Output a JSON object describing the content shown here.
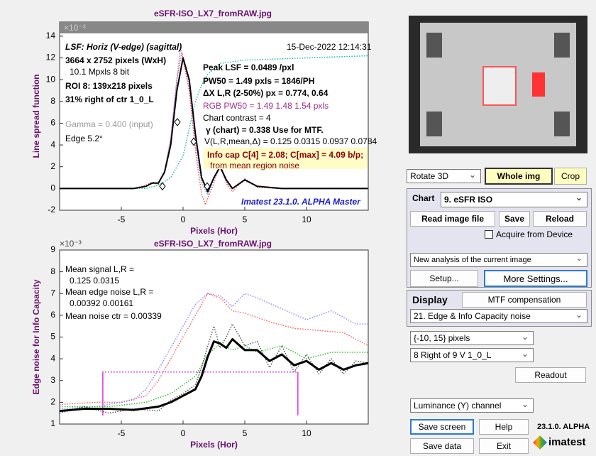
{
  "chart_data": [
    {
      "type": "line",
      "title": "eSFR-ISO_LX7_fromRAW.jpg",
      "multiplier": "×10⁻³",
      "xlabel": "Pixels (Hor)",
      "ylabel": "Line spread function",
      "xlim": [
        -10,
        15
      ],
      "ylim": [
        -2,
        15.3
      ],
      "xticks": [
        -5,
        0,
        5,
        10
      ],
      "yticks": [
        -2,
        0,
        2,
        4,
        6,
        8,
        10,
        12,
        14
      ],
      "annotations": [
        "LSF: Horiz (V-edge) (sagittal)",
        "15-Dec-2022 12:14:31",
        "3664 x 2752 pixels (WxH)",
        "10.1 Mpxls  8 bit",
        "ROI 8:  139x218 pixels",
        "31% right of ctr  1_0_L",
        "Gamma = 0.400 (input)",
        "Edge   5.2°",
        "Peak LSF = 0.0489 /pxl",
        "PW50 = 1.49 pxls =  1846/PH",
        "ΔX L,R (2-50%) px = 0.774, 0.64",
        "RGB PW50 =   1.49    1.48    1.54 pxls",
        "Chart contrast = 4",
        "γ (chart) = 0.338  Use for MTF.",
        "V(L,R,mean,Δ) = 0.125  0.0315  0.0937  0.0784",
        "Info cap C[4] = 2.08;  C[max] = 4.09 b/p;",
        "from mean region noise",
        "Imatest 23.1.0. ALPHA Master"
      ],
      "series": [
        {
          "color": "#20b8b8",
          "style": "dotted",
          "x": [
            -10,
            -3,
            -2,
            -1,
            0,
            0.5,
            1,
            1.5,
            2,
            3,
            5,
            10,
            15
          ],
          "values": [
            0,
            0,
            0.3,
            1,
            3,
            5.5,
            8,
            9.5,
            10.5,
            11.5,
            11.8,
            12,
            12.2
          ]
        },
        {
          "color": "#ff5050",
          "style": "dotted",
          "x": [
            -10,
            -4,
            -3,
            -2.5,
            -2,
            -1.5,
            -1,
            -0.5,
            -0.1,
            0.5,
            1,
            1.5,
            1.8,
            2.5,
            3,
            3.5,
            4,
            5,
            6,
            8,
            10,
            15
          ],
          "values": [
            0,
            0,
            0.3,
            0.6,
            0.4,
            1.5,
            4.5,
            10,
            12.5,
            9,
            3.5,
            -0.5,
            -1.5,
            0.5,
            2.3,
            0.5,
            -0.3,
            0.9,
            0.1,
            0,
            0,
            0
          ]
        },
        {
          "color": "#30c030",
          "style": "dotted",
          "x": [
            -10,
            -4,
            -3,
            -2.5,
            -2,
            -1.5,
            -1,
            -0.5,
            0,
            0.5,
            1,
            1.5,
            2,
            2.5,
            3,
            3.5,
            4,
            5,
            6,
            8,
            10,
            15
          ],
          "values": [
            0,
            0,
            0.2,
            0.5,
            0.4,
            1.5,
            4,
            9.2,
            12,
            10,
            5,
            0.8,
            -0.4,
            1,
            2.1,
            0.7,
            0,
            0.8,
            0.2,
            0,
            0,
            0
          ]
        },
        {
          "color": "#8888ff",
          "style": "dotted",
          "x": [
            -10,
            -4,
            -3,
            -2.5,
            -2,
            -1.5,
            -1,
            -0.5,
            -0.2,
            0.5,
            1,
            1.5,
            2,
            2.5,
            3,
            3.5,
            4,
            5,
            6,
            8,
            10,
            15
          ],
          "values": [
            0,
            0,
            0.2,
            0.5,
            0.5,
            1.6,
            4.5,
            10,
            13,
            9.5,
            4,
            0.5,
            -0.6,
            0.8,
            2,
            0.6,
            0,
            0.7,
            0.2,
            0,
            0,
            0
          ]
        },
        {
          "color": "#000000",
          "style": "solid",
          "x": [
            -10,
            -4,
            -3,
            -2.5,
            -2,
            -1.5,
            -1,
            -0.5,
            0,
            0.5,
            1,
            1.5,
            2,
            2.5,
            3,
            3.5,
            4,
            5,
            6,
            8,
            10,
            15
          ],
          "values": [
            0,
            0,
            0.2,
            0.5,
            0.5,
            1.5,
            4,
            9,
            12,
            10,
            5,
            1,
            -0.3,
            1,
            2,
            0.8,
            0,
            0.8,
            0.2,
            0,
            0,
            0
          ]
        },
        {
          "color": "#000000",
          "marker": "diamond",
          "x": [
            -1.67,
            -0.46,
            0.86,
            1.95
          ],
          "values": [
            0.2,
            6.1,
            4.3,
            0.2
          ]
        }
      ]
    },
    {
      "type": "line",
      "title": "eSFR-ISO_LX7_fromRAW.jpg",
      "multiplier": "×10⁻³",
      "xlabel": "Pixels (Hor)",
      "ylabel": "Edge noise for Info Capacity",
      "xlim": [
        -10,
        15
      ],
      "ylim": [
        1,
        9
      ],
      "xticks": [
        -5,
        0,
        5,
        10
      ],
      "yticks": [
        1,
        2,
        3,
        4,
        5,
        6,
        7,
        8,
        9
      ],
      "annotations": [
        "Mean signal L,R =",
        "0.125  0.0315",
        "Mean edge noise L,R =",
        "0.00392  0.00161",
        "Mean noise ctr = 0.00339"
      ],
      "box": {
        "x": [
          -6.5,
          9.3
        ],
        "y": 3.39,
        "bottom": 1.4,
        "color": "#e040e0"
      },
      "series": [
        {
          "color": "#ff6060",
          "style": "dotted",
          "x": [
            -10,
            -7,
            -5,
            -3,
            -2,
            -1,
            0,
            1,
            2,
            3,
            4,
            5,
            7,
            9,
            11,
            13,
            15
          ],
          "values": [
            1.9,
            2,
            2,
            2.3,
            3,
            4,
            5,
            6,
            7,
            6.8,
            6.2,
            6.1,
            5.7,
            5.4,
            5.3,
            5.2,
            4.6
          ]
        },
        {
          "color": "#8888ff",
          "style": "dotted",
          "x": [
            -10,
            -7,
            -4,
            -3,
            -2,
            -1,
            0,
            1,
            2,
            3,
            4,
            5,
            6,
            8,
            10,
            12,
            14,
            15
          ],
          "values": [
            1.7,
            1.8,
            2.1,
            2.6,
            3.5,
            4.5,
            5.5,
            6.5,
            7,
            6.9,
            6.4,
            7,
            6.8,
            6.3,
            5.8,
            6.2,
            5.6,
            5.6
          ]
        },
        {
          "color": "#30c030",
          "style": "dotted",
          "x": [
            -10,
            -6,
            -3,
            -1,
            0,
            1,
            2,
            3,
            4,
            5,
            6,
            8,
            10,
            12,
            15
          ],
          "values": [
            1.8,
            1.8,
            2,
            2.4,
            2.8,
            3.2,
            4.2,
            4.7,
            4.4,
            4.6,
            4.3,
            4.6,
            4,
            4.3,
            4.3
          ]
        },
        {
          "color": "#505050",
          "style": "dotted",
          "x": [
            -10,
            -8,
            -6,
            -4,
            -2,
            -1,
            0,
            1,
            1.5,
            2,
            2.5,
            3,
            3.5,
            4,
            5,
            6,
            7,
            8,
            9,
            10,
            11,
            12,
            13,
            14,
            15
          ],
          "values": [
            1.5,
            1.8,
            1.5,
            1.7,
            1.6,
            2.1,
            2.4,
            2.8,
            3.6,
            4.6,
            5.5,
            4.5,
            5,
            5.6,
            4.6,
            4.8,
            3.6,
            4.6,
            3.4,
            4.2,
            3.3,
            4,
            3.3,
            3.9,
            3.8
          ]
        },
        {
          "color": "#000000",
          "style": "thick",
          "x": [
            -10,
            -8,
            -6,
            -4,
            -2,
            -1,
            0,
            1,
            1.5,
            2,
            2.5,
            3,
            3.5,
            4,
            5,
            6,
            7,
            8,
            9,
            10,
            11,
            12,
            13,
            14,
            15
          ],
          "values": [
            1.6,
            1.7,
            1.7,
            1.65,
            1.8,
            2,
            2.3,
            2.6,
            3.2,
            4.1,
            4.8,
            4.7,
            4.5,
            4.9,
            4.4,
            4.4,
            3.9,
            4.2,
            3.7,
            3.9,
            3.5,
            3.8,
            3.5,
            3.7,
            3.8
          ]
        }
      ]
    }
  ],
  "ui": {
    "rotate_select": "Rotate 3D",
    "whole_img": "Whole img",
    "crop": "Crop",
    "chart_label": "Chart",
    "chart_select": "9. eSFR ISO",
    "read_image": "Read image file",
    "save": "Save",
    "reload": "Reload",
    "acquire": "Acquire from Device",
    "analysis_select": "New analysis of the current image",
    "setup": "Setup...",
    "more_settings": "More Settings...",
    "display_label": "Display",
    "mtf_comp": "MTF compensation",
    "display_select": "21. Edge & Info Capacity noise",
    "range_select": "{-10, 15} pixels",
    "roi_select": "8  Right of 9 V    1_0_L",
    "readout": "Readout",
    "channel_select": "Luminance (Y) channel",
    "save_screen": "Save screen",
    "help": "Help",
    "version": "23.1.0. ALPHA",
    "save_data": "Save data",
    "exit": "Exit",
    "brand": "imatest"
  }
}
